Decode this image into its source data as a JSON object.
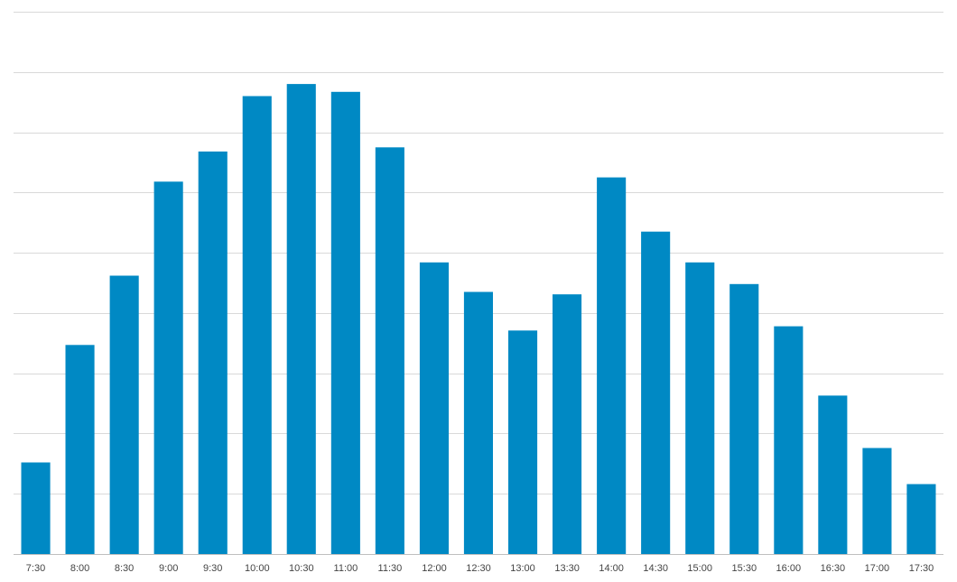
{
  "chart_data": {
    "type": "bar",
    "title": "",
    "xlabel": "",
    "ylabel": "",
    "categories": [
      "7:30",
      "8:00",
      "8:30",
      "9:00",
      "9:30",
      "10:00",
      "10:30",
      "11:00",
      "11:30",
      "12:00",
      "12:30",
      "13:00",
      "13:30",
      "14:00",
      "14:30",
      "15:00",
      "15:30",
      "16:00",
      "16:30",
      "17:00",
      "17:30"
    ],
    "values": [
      1.52,
      3.47,
      4.62,
      6.18,
      6.68,
      7.6,
      7.8,
      7.67,
      6.75,
      4.84,
      4.35,
      3.71,
      4.31,
      6.25,
      5.35,
      4.84,
      4.48,
      3.78,
      2.63,
      1.76,
      1.16
    ],
    "ylim": [
      0,
      9
    ],
    "y_ticks_shown": false,
    "grid": true,
    "legend": "none",
    "colors": {
      "bar": "#0089C4",
      "grid": "#D9D9D9",
      "axis": "#BFBFBF",
      "tick_text": "#444444"
    }
  }
}
